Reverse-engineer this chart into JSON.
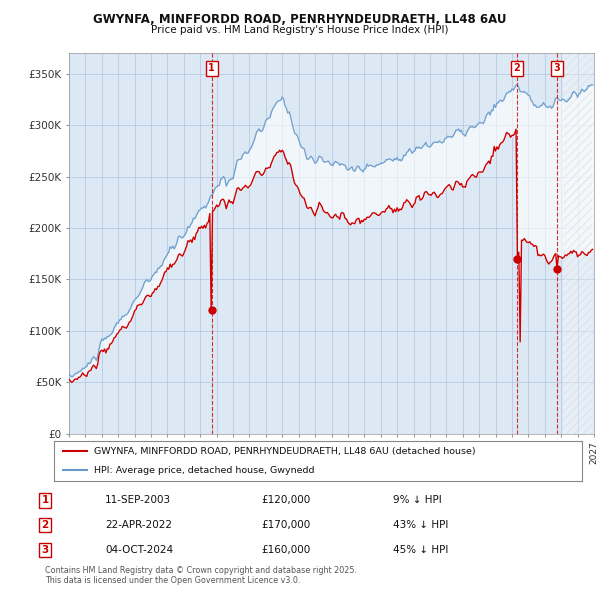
{
  "title_line1": "GWYNFA, MINFFORDD ROAD, PENRHYNDEUDRAETH, LL48 6AU",
  "title_line2": "Price paid vs. HM Land Registry's House Price Index (HPI)",
  "background_color": "#ffffff",
  "plot_bg_color": "#dce9f5",
  "grid_color": "#b0c4de",
  "hpi_line_color": "#6699cc",
  "price_line_color": "#cc0000",
  "fill_color": "#dce9f5",
  "ylim": [
    0,
    370000
  ],
  "yticks": [
    0,
    50000,
    100000,
    150000,
    200000,
    250000,
    300000,
    350000
  ],
  "ytick_labels": [
    "£0",
    "£50K",
    "£100K",
    "£150K",
    "£200K",
    "£250K",
    "£300K",
    "£350K"
  ],
  "sales": [
    {
      "date_num": 2003.7,
      "price": 120000,
      "label": "1"
    },
    {
      "date_num": 2022.3,
      "price": 170000,
      "label": "2"
    },
    {
      "date_num": 2024.75,
      "price": 160000,
      "label": "3"
    }
  ],
  "sale_table": [
    {
      "num": "1",
      "date": "11-SEP-2003",
      "price": "£120,000",
      "hpi": "9% ↓ HPI"
    },
    {
      "num": "2",
      "date": "22-APR-2022",
      "price": "£170,000",
      "hpi": "43% ↓ HPI"
    },
    {
      "num": "3",
      "date": "04-OCT-2024",
      "price": "£160,000",
      "hpi": "45% ↓ HPI"
    }
  ],
  "legend_entry1": "GWYNFA, MINFFORDD ROAD, PENRHYNDEUDRAETH, LL48 6AU (detached house)",
  "legend_entry2": "HPI: Average price, detached house, Gwynedd",
  "footnote": "Contains HM Land Registry data © Crown copyright and database right 2025.\nThis data is licensed under the Open Government Licence v3.0.",
  "xmin": 1995,
  "xmax": 2027
}
